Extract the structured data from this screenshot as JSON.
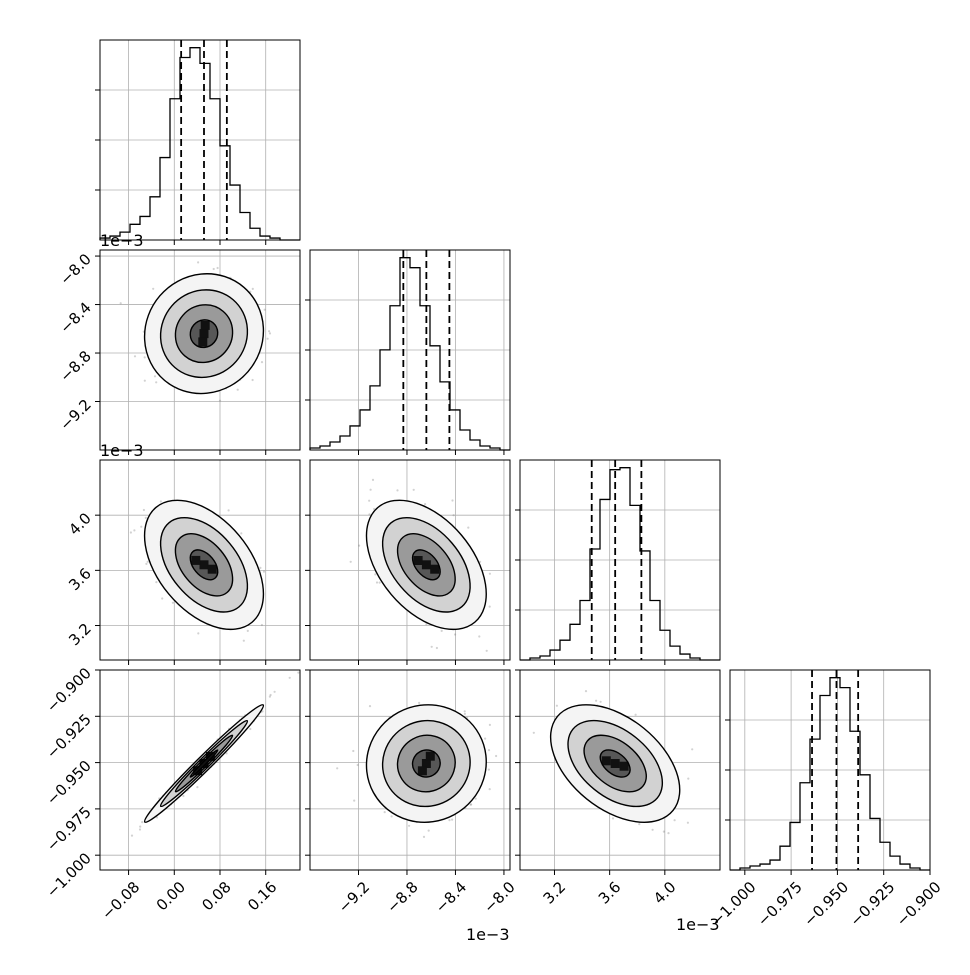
{
  "chart_data": {
    "type": "corner",
    "description_free": true,
    "parameters": 4,
    "quantile_lines": [
      0.16,
      0.5,
      0.84
    ],
    "offset_labels": {
      "row1_y": "1e−3",
      "row2_y": "1e−3",
      "col1_x": "1e−3",
      "col2_x": "1e−3"
    },
    "axes": {
      "p0": {
        "range": [
          -0.13,
          0.22
        ],
        "ticks": [
          -0.08,
          0.0,
          0.08,
          0.16
        ],
        "tick_labels": [
          "−0.08",
          "0.00",
          "0.08",
          "0.16"
        ]
      },
      "p1": {
        "range": [
          -9.6,
          -7.95
        ],
        "ticks": [
          -9.2,
          -8.8,
          -8.4,
          -8.0
        ],
        "tick_labels": [
          "−9.2",
          "−8.8",
          "−8.4",
          "−8.0"
        ]
      },
      "p2": {
        "range": [
          2.95,
          4.4
        ],
        "ticks": [
          3.2,
          3.6,
          4.0
        ],
        "tick_labels": [
          "3.2",
          "3.6",
          "4.0"
        ]
      },
      "p3": {
        "range": [
          -1.008,
          -0.9
        ],
        "ticks": [
          -1.0,
          -0.975,
          -0.95,
          -0.925,
          -0.9
        ],
        "tick_labels": [
          "−1.000",
          "−0.975",
          "−0.950",
          "−0.925",
          "−0.900"
        ]
      }
    },
    "marginals": [
      {
        "param": "p0",
        "quantiles": [
          0.012,
          0.052,
          0.092
        ],
        "bin_edges": [
          -0.13,
          -0.1125,
          -0.095,
          -0.0775,
          -0.06,
          -0.0425,
          -0.025,
          -0.0075,
          0.01,
          0.0275,
          0.045,
          0.0625,
          0.08,
          0.0975,
          0.115,
          0.1325,
          0.15,
          0.1675,
          0.185,
          0.2025,
          0.22
        ],
        "counts": [
          1,
          2,
          4,
          8,
          12,
          22,
          42,
          72,
          93,
          98,
          90,
          72,
          48,
          28,
          14,
          6,
          2,
          1,
          0,
          0
        ]
      },
      {
        "param": "p1",
        "quantiles": [
          -8.83,
          -8.64,
          -8.45
        ],
        "bin_edges": [
          -9.6,
          -9.5175,
          -9.435,
          -9.3525,
          -9.27,
          -9.1875,
          -9.105,
          -9.0225,
          -8.94,
          -8.8575,
          -8.775,
          -8.6925,
          -8.61,
          -8.5275,
          -8.445,
          -8.3625,
          -8.28,
          -8.1975,
          -8.115,
          -8.0325,
          -7.95
        ],
        "counts": [
          1,
          2,
          4,
          7,
          12,
          20,
          32,
          50,
          72,
          96,
          91,
          72,
          52,
          34,
          20,
          10,
          5,
          2,
          1,
          0
        ]
      },
      {
        "param": "p2",
        "quantiles": [
          3.47,
          3.64,
          3.83
        ],
        "bin_edges": [
          2.95,
          3.0225,
          3.095,
          3.1675,
          3.24,
          3.3125,
          3.385,
          3.4575,
          3.53,
          3.6025,
          3.675,
          3.7475,
          3.82,
          3.8925,
          3.965,
          4.0375,
          4.11,
          4.1825,
          4.255,
          4.3275,
          4.4
        ],
        "counts": [
          0,
          1,
          2,
          5,
          10,
          18,
          30,
          56,
          81,
          96,
          97,
          78,
          55,
          30,
          15,
          7,
          3,
          1,
          0,
          0
        ]
      },
      {
        "param": "p3",
        "quantiles": [
          -0.9637,
          -0.9505,
          -0.9388
        ],
        "bin_edges": [
          -1.008,
          -1.0026,
          -0.9972,
          -0.9918,
          -0.9864,
          -0.981,
          -0.9756,
          -0.9702,
          -0.9648,
          -0.9594,
          -0.954,
          -0.9486,
          -0.9432,
          -0.9378,
          -0.9324,
          -0.927,
          -0.9216,
          -0.9162,
          -0.9108,
          -0.9054,
          -0.9
        ],
        "counts": [
          0,
          1,
          2,
          3,
          5,
          12,
          24,
          44,
          66,
          88,
          97,
          92,
          70,
          48,
          26,
          14,
          7,
          3,
          1,
          0
        ]
      }
    ],
    "pairs": [
      {
        "x": "p0",
        "y": "p1",
        "mean": [
          0.052,
          -8.64
        ],
        "sd": [
          0.04,
          0.19
        ],
        "rho": 0.05
      },
      {
        "x": "p0",
        "y": "p2",
        "mean": [
          0.052,
          3.64
        ],
        "sd": [
          0.04,
          0.18
        ],
        "rho": -0.45
      },
      {
        "x": "p1",
        "y": "p2",
        "mean": [
          -8.64,
          3.64
        ],
        "sd": [
          0.19,
          0.18
        ],
        "rho": -0.45
      },
      {
        "x": "p0",
        "y": "p3",
        "mean": [
          0.052,
          -0.9505
        ],
        "sd": [
          0.04,
          0.0122
        ],
        "rho": 0.985
      },
      {
        "x": "p1",
        "y": "p3",
        "mean": [
          -8.64,
          -0.9505
        ],
        "sd": [
          0.19,
          0.0122
        ],
        "rho": 0.03
      },
      {
        "x": "p2",
        "y": "p3",
        "mean": [
          3.64,
          -0.9505
        ],
        "sd": [
          0.18,
          0.0122
        ],
        "rho": -0.45
      }
    ],
    "grid": true,
    "colors": {
      "line": "#000000",
      "scatter": "#7f7f7f",
      "grid": "#b0b0b0"
    }
  }
}
